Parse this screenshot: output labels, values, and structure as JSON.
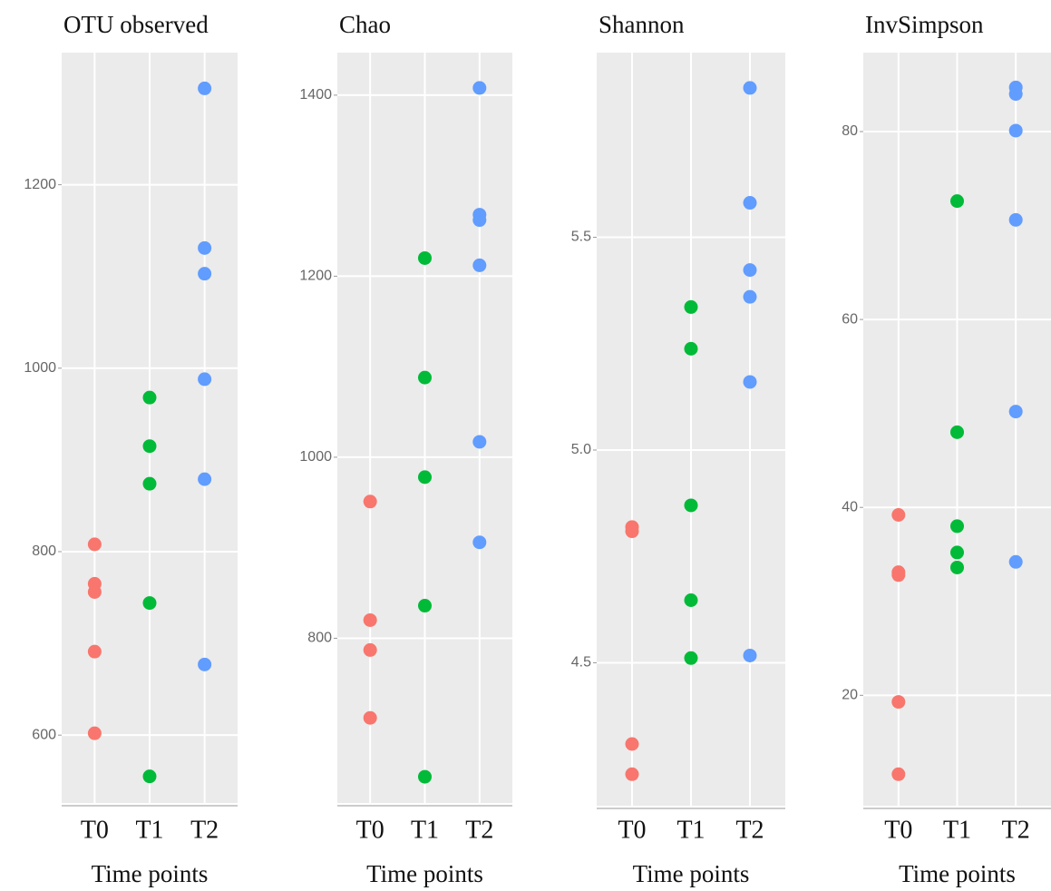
{
  "chart_data": [
    {
      "type": "strip",
      "title": "OTU observed",
      "xlabel": "Time points",
      "categories": [
        "T0",
        "T1",
        "T2"
      ],
      "colors": [
        "#F8766D",
        "#00BA38",
        "#619CFF"
      ],
      "values": [
        [
          808,
          765,
          756,
          691,
          602
        ],
        [
          968,
          915,
          874,
          744,
          555
        ],
        [
          1305,
          1131,
          1103,
          988,
          879,
          677
        ]
      ],
      "ylim": [
        526,
        1344
      ],
      "yticks": [
        600,
        800,
        1000,
        1200
      ],
      "grid": true
    },
    {
      "type": "strip",
      "title": "Chao",
      "xlabel": "Time points",
      "categories": [
        "T0",
        "T1",
        "T2"
      ],
      "colors": [
        "#F8766D",
        "#00BA38",
        "#619CFF"
      ],
      "values": [
        [
          951,
          820,
          787,
          712
        ],
        [
          1220,
          1088,
          978,
          836,
          647
        ],
        [
          1408,
          1268,
          1262,
          1212,
          1017,
          906
        ]
      ],
      "ylim": [
        618,
        1447
      ],
      "yticks": [
        800,
        1000,
        1200,
        1400
      ],
      "grid": true
    },
    {
      "type": "strip",
      "title": "Shannon",
      "xlabel": "Time points",
      "categories": [
        "T0",
        "T1",
        "T2"
      ],
      "colors": [
        "#F8766D",
        "#00BA38",
        "#619CFF"
      ],
      "values": [
        [
          4.819,
          4.809,
          4.309,
          4.238
        ],
        [
          5.336,
          5.238,
          4.87,
          4.647,
          4.511
        ],
        [
          5.851,
          5.581,
          5.423,
          5.36,
          5.16,
          4.517
        ]
      ],
      "ylim": [
        4.164,
        5.934
      ],
      "yticks": [
        4.5,
        {
          "value": 5,
          "label": "5.0"
        },
        5.5
      ],
      "grid": true
    },
    {
      "type": "strip",
      "title": "InvSimpson",
      "xlabel": "Time points",
      "categories": [
        "T0",
        "T1",
        "T2"
      ],
      "colors": [
        "#F8766D",
        "#00BA38",
        "#619CFF"
      ],
      "values": [
        [
          39.2,
          33.1,
          32.8,
          19.3,
          11.6
        ],
        [
          72.6,
          48.0,
          38.0,
          35.2,
          33.6
        ],
        [
          84.7,
          84.0,
          80.1,
          70.6,
          50.2,
          34.2
        ]
      ],
      "ylim": [
        8.25,
        88.4
      ],
      "yticks": [
        20,
        40,
        60,
        80
      ],
      "grid": true
    }
  ]
}
